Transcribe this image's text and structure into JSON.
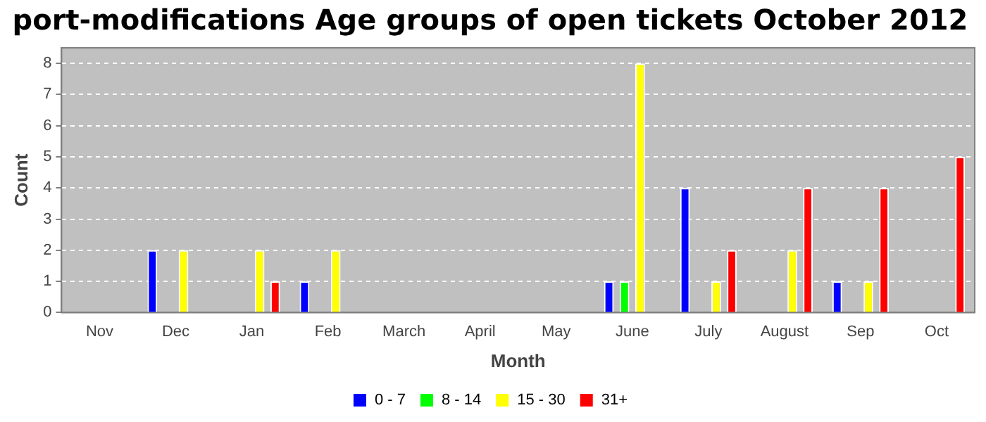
{
  "chart_data": {
    "type": "bar",
    "title": "port-modifications Age groups of open tickets October 2012",
    "xlabel": "Month",
    "ylabel": "Count",
    "categories": [
      "Nov",
      "Dec",
      "Jan",
      "Feb",
      "March",
      "April",
      "May",
      "June",
      "July",
      "August",
      "Sep",
      "Oct"
    ],
    "series": [
      {
        "name": "0 - 7",
        "color": "#0000ff",
        "values": [
          null,
          2,
          null,
          1,
          null,
          null,
          null,
          1,
          4,
          null,
          1,
          null
        ]
      },
      {
        "name": "8 - 14",
        "color": "#00ff00",
        "values": [
          null,
          null,
          null,
          null,
          null,
          null,
          null,
          1,
          null,
          null,
          null,
          null
        ]
      },
      {
        "name": "15 - 30",
        "color": "#ffff00",
        "values": [
          null,
          2,
          2,
          2,
          null,
          null,
          null,
          8,
          1,
          2,
          1,
          null
        ]
      },
      {
        "name": "31+",
        "color": "#ff0000",
        "values": [
          null,
          null,
          1,
          null,
          null,
          null,
          null,
          null,
          2,
          4,
          4,
          5
        ]
      }
    ],
    "ylim": [
      0,
      8.5
    ],
    "yticks": [
      0,
      1,
      2,
      3,
      4,
      5,
      6,
      7,
      8
    ],
    "grid": "y",
    "legend": "bottom"
  }
}
